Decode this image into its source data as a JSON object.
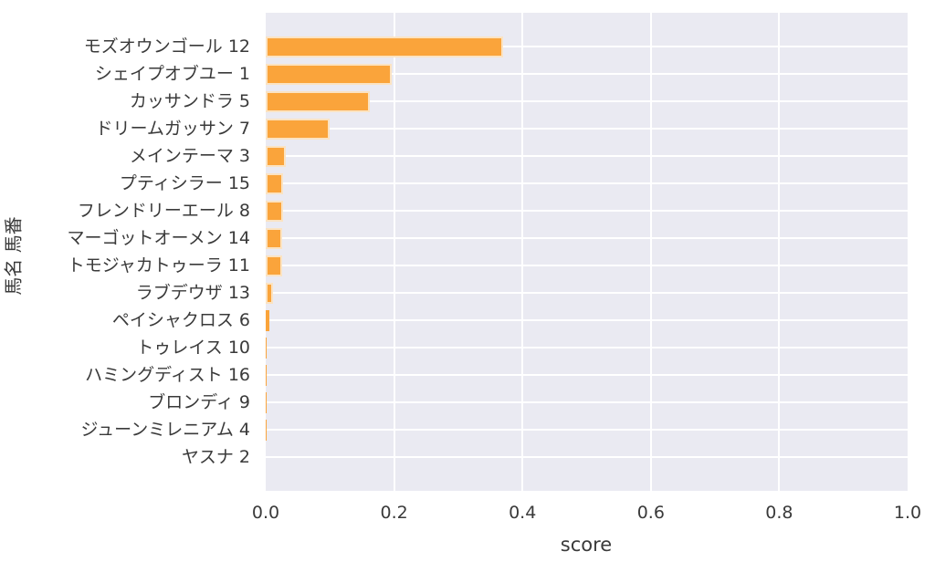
{
  "chart_data": {
    "type": "bar",
    "orientation": "horizontal",
    "title": "",
    "xlabel": "score",
    "ylabel": "馬名 馬番",
    "xlim": [
      0.0,
      1.0
    ],
    "x_ticks": [
      "0.0",
      "0.2",
      "0.4",
      "0.6",
      "0.8",
      "1.0"
    ],
    "grid": true,
    "legend": "none",
    "categories": [
      "モズオウンゴール 12",
      "シェイプオブユー 1",
      "カッサンドラ 5",
      "ドリームガッサン 7",
      "メインテーマ 3",
      "プティシラー 15",
      "フレンドリーエール 8",
      "マーゴットオーメン 14",
      "トモジャカトゥーラ 11",
      "ラブデウザ 13",
      "ペイシャクロス 6",
      "トゥレイス 10",
      "ハミングディスト 16",
      "ブロンディ 9",
      "ジューンミレニアム 4",
      "ヤスナ 2"
    ],
    "values": [
      0.37,
      0.197,
      0.162,
      0.099,
      0.031,
      0.027,
      0.027,
      0.026,
      0.026,
      0.012,
      0.005,
      0.002,
      0.002,
      0.001,
      0.001,
      0.0
    ],
    "colors": {
      "bar_fill": "#FAA43B",
      "bar_edge": "#FBE3C2",
      "plot_background": "#EAEAF2",
      "grid_line": "#FFFFFF",
      "text": "#3A3A3A",
      "figure_background": "#FFFFFF"
    }
  }
}
